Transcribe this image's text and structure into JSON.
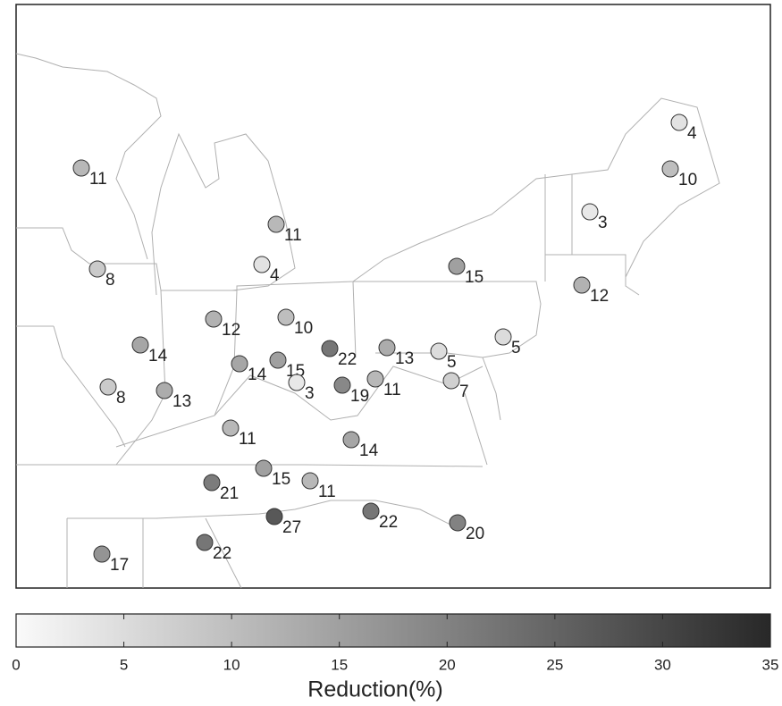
{
  "map": {
    "points": [
      {
        "value": 4
      },
      {
        "value": 10
      },
      {
        "value": 3
      },
      {
        "value": 11
      },
      {
        "value": 11
      },
      {
        "value": 4
      },
      {
        "value": 8
      },
      {
        "value": 15
      },
      {
        "value": 12
      },
      {
        "value": 12
      },
      {
        "value": 10
      },
      {
        "value": 14
      },
      {
        "value": 22
      },
      {
        "value": 13
      },
      {
        "value": 5
      },
      {
        "value": 5
      },
      {
        "value": 14
      },
      {
        "value": 15
      },
      {
        "value": 8
      },
      {
        "value": 13
      },
      {
        "value": 3
      },
      {
        "value": 19
      },
      {
        "value": 11
      },
      {
        "value": 7
      },
      {
        "value": 11
      },
      {
        "value": 14
      },
      {
        "value": 15
      },
      {
        "value": 11
      },
      {
        "value": 21
      },
      {
        "value": 22
      },
      {
        "value": 27
      },
      {
        "value": 20
      },
      {
        "value": 17
      },
      {
        "value": 22
      }
    ],
    "colorbar": {
      "label": "Reduction(%)",
      "lim": [
        0,
        35
      ],
      "ticks": [
        0,
        5,
        10,
        15,
        20,
        25,
        30,
        35
      ]
    }
  }
}
